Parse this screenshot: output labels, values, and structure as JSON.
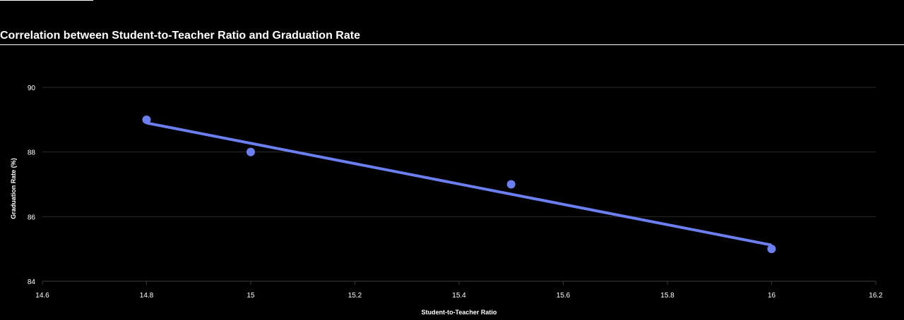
{
  "chart_data": {
    "type": "scatter",
    "title": "Correlation between Student-to-Teacher Ratio and Graduation Rate",
    "xlabel": "Student-to-Teacher Ratio",
    "ylabel": "Graduation Rate (%)",
    "xlim": [
      14.6,
      16.2
    ],
    "ylim": [
      84,
      90
    ],
    "xticks": [
      14.6,
      14.8,
      15,
      15.2,
      15.4,
      15.6,
      15.8,
      16,
      16.2
    ],
    "xtick_labels": [
      "14.6",
      "14.8",
      "15",
      "15.2",
      "15.4",
      "15.6",
      "15.8",
      "16",
      "16.2"
    ],
    "yticks": [
      84,
      86,
      88,
      90
    ],
    "ytick_labels": [
      "84",
      "86",
      "88",
      "90"
    ],
    "grid": true,
    "series": [
      {
        "type": "scatter",
        "x": [
          14.8,
          15,
          15.5,
          16
        ],
        "y": [
          89,
          88,
          87,
          85
        ]
      },
      {
        "type": "line",
        "x": [
          14.8,
          16
        ],
        "y": [
          88.9,
          85.12
        ]
      }
    ],
    "colors": {
      "points": "#6b7ff0",
      "trend_line": "#6b7ff0",
      "grid": "#2a2a2a",
      "text": "#ffffff",
      "background": "#000000"
    }
  }
}
